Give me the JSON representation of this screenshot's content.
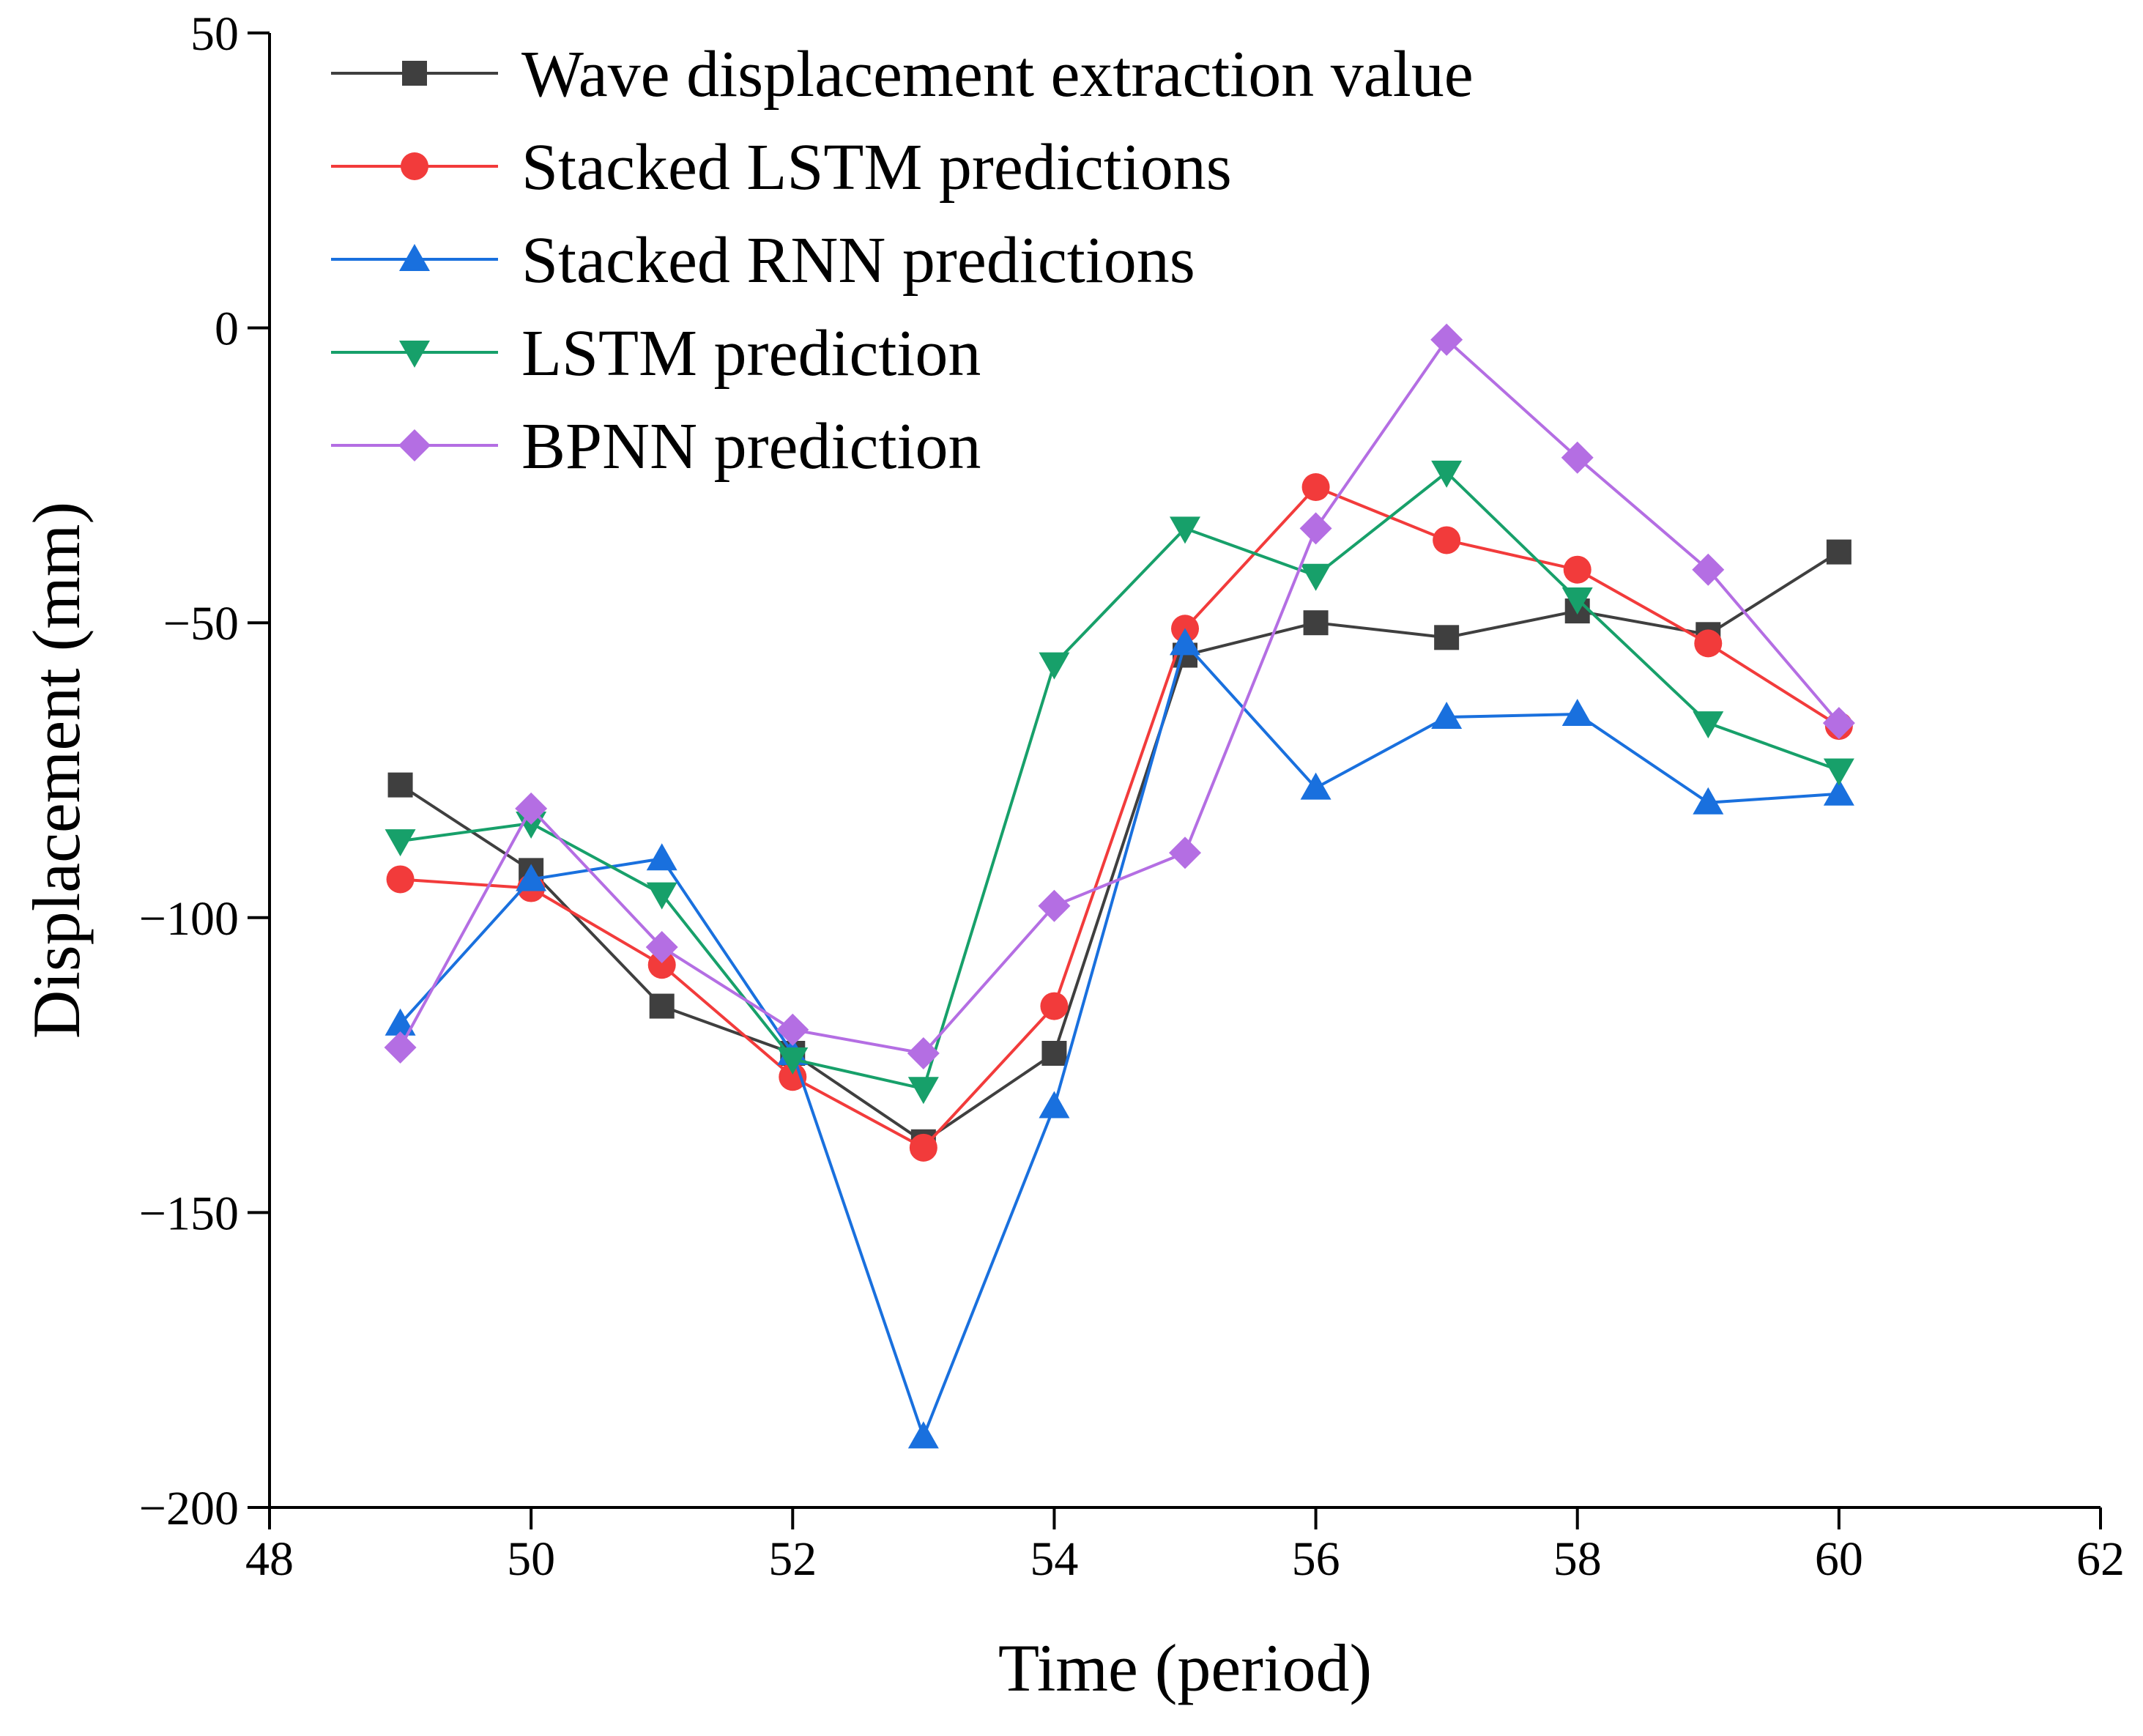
{
  "chart_data": {
    "type": "line",
    "title": "",
    "xlabel": "Time (period)",
    "ylabel": "Displacement (mm)",
    "xlim": [
      48,
      62
    ],
    "ylim": [
      -200,
      50
    ],
    "xticks": [
      48,
      50,
      52,
      54,
      56,
      58,
      60,
      62
    ],
    "yticks": [
      -200,
      -150,
      -100,
      -50,
      0,
      50
    ],
    "xtick_labels": [
      "48",
      "50",
      "52",
      "54",
      "56",
      "58",
      "60",
      "62"
    ],
    "ytick_labels": [
      "−200",
      "−150",
      "−100",
      "−50",
      "0",
      "50"
    ],
    "grid": false,
    "legend_position": "top-left",
    "x": [
      49,
      50,
      51,
      52,
      53,
      54,
      55,
      56,
      57,
      58,
      59,
      60
    ],
    "series": [
      {
        "name": "Wave displacement extraction value",
        "color": "#3f3f3f",
        "marker": "square",
        "values": [
          -77.5,
          -92,
          -115,
          -123,
          -138,
          -123,
          -55.5,
          -50,
          -52.5,
          -48,
          -52,
          -38
        ]
      },
      {
        "name": "Stacked LSTM predictions",
        "color": "#f23b3b",
        "marker": "circle",
        "values": [
          -93.5,
          -95,
          -108,
          -127,
          -139,
          -115,
          -51,
          -27,
          -36,
          -41,
          -53.5,
          -67.5
        ]
      },
      {
        "name": "Stacked RNN predictions",
        "color": "#1970de",
        "marker": "triangle-up",
        "values": [
          -118,
          -93.5,
          -90,
          -123,
          -188,
          -132,
          -53.5,
          -78,
          -66,
          -65.5,
          -80.5,
          -79
        ]
      },
      {
        "name": "LSTM prediction",
        "color": "#17a06a",
        "marker": "triangle-down",
        "values": [
          -87,
          -84,
          -96,
          -124,
          -129,
          -57,
          -34,
          -42,
          -24.5,
          -46,
          -67,
          -75
        ]
      },
      {
        "name": "BPNN prediction",
        "color": "#b46ee3",
        "marker": "diamond",
        "values": [
          -122,
          -81.5,
          -105,
          -119,
          -123,
          -98,
          -89,
          -34,
          -2,
          -22,
          -41,
          -67
        ]
      }
    ]
  }
}
